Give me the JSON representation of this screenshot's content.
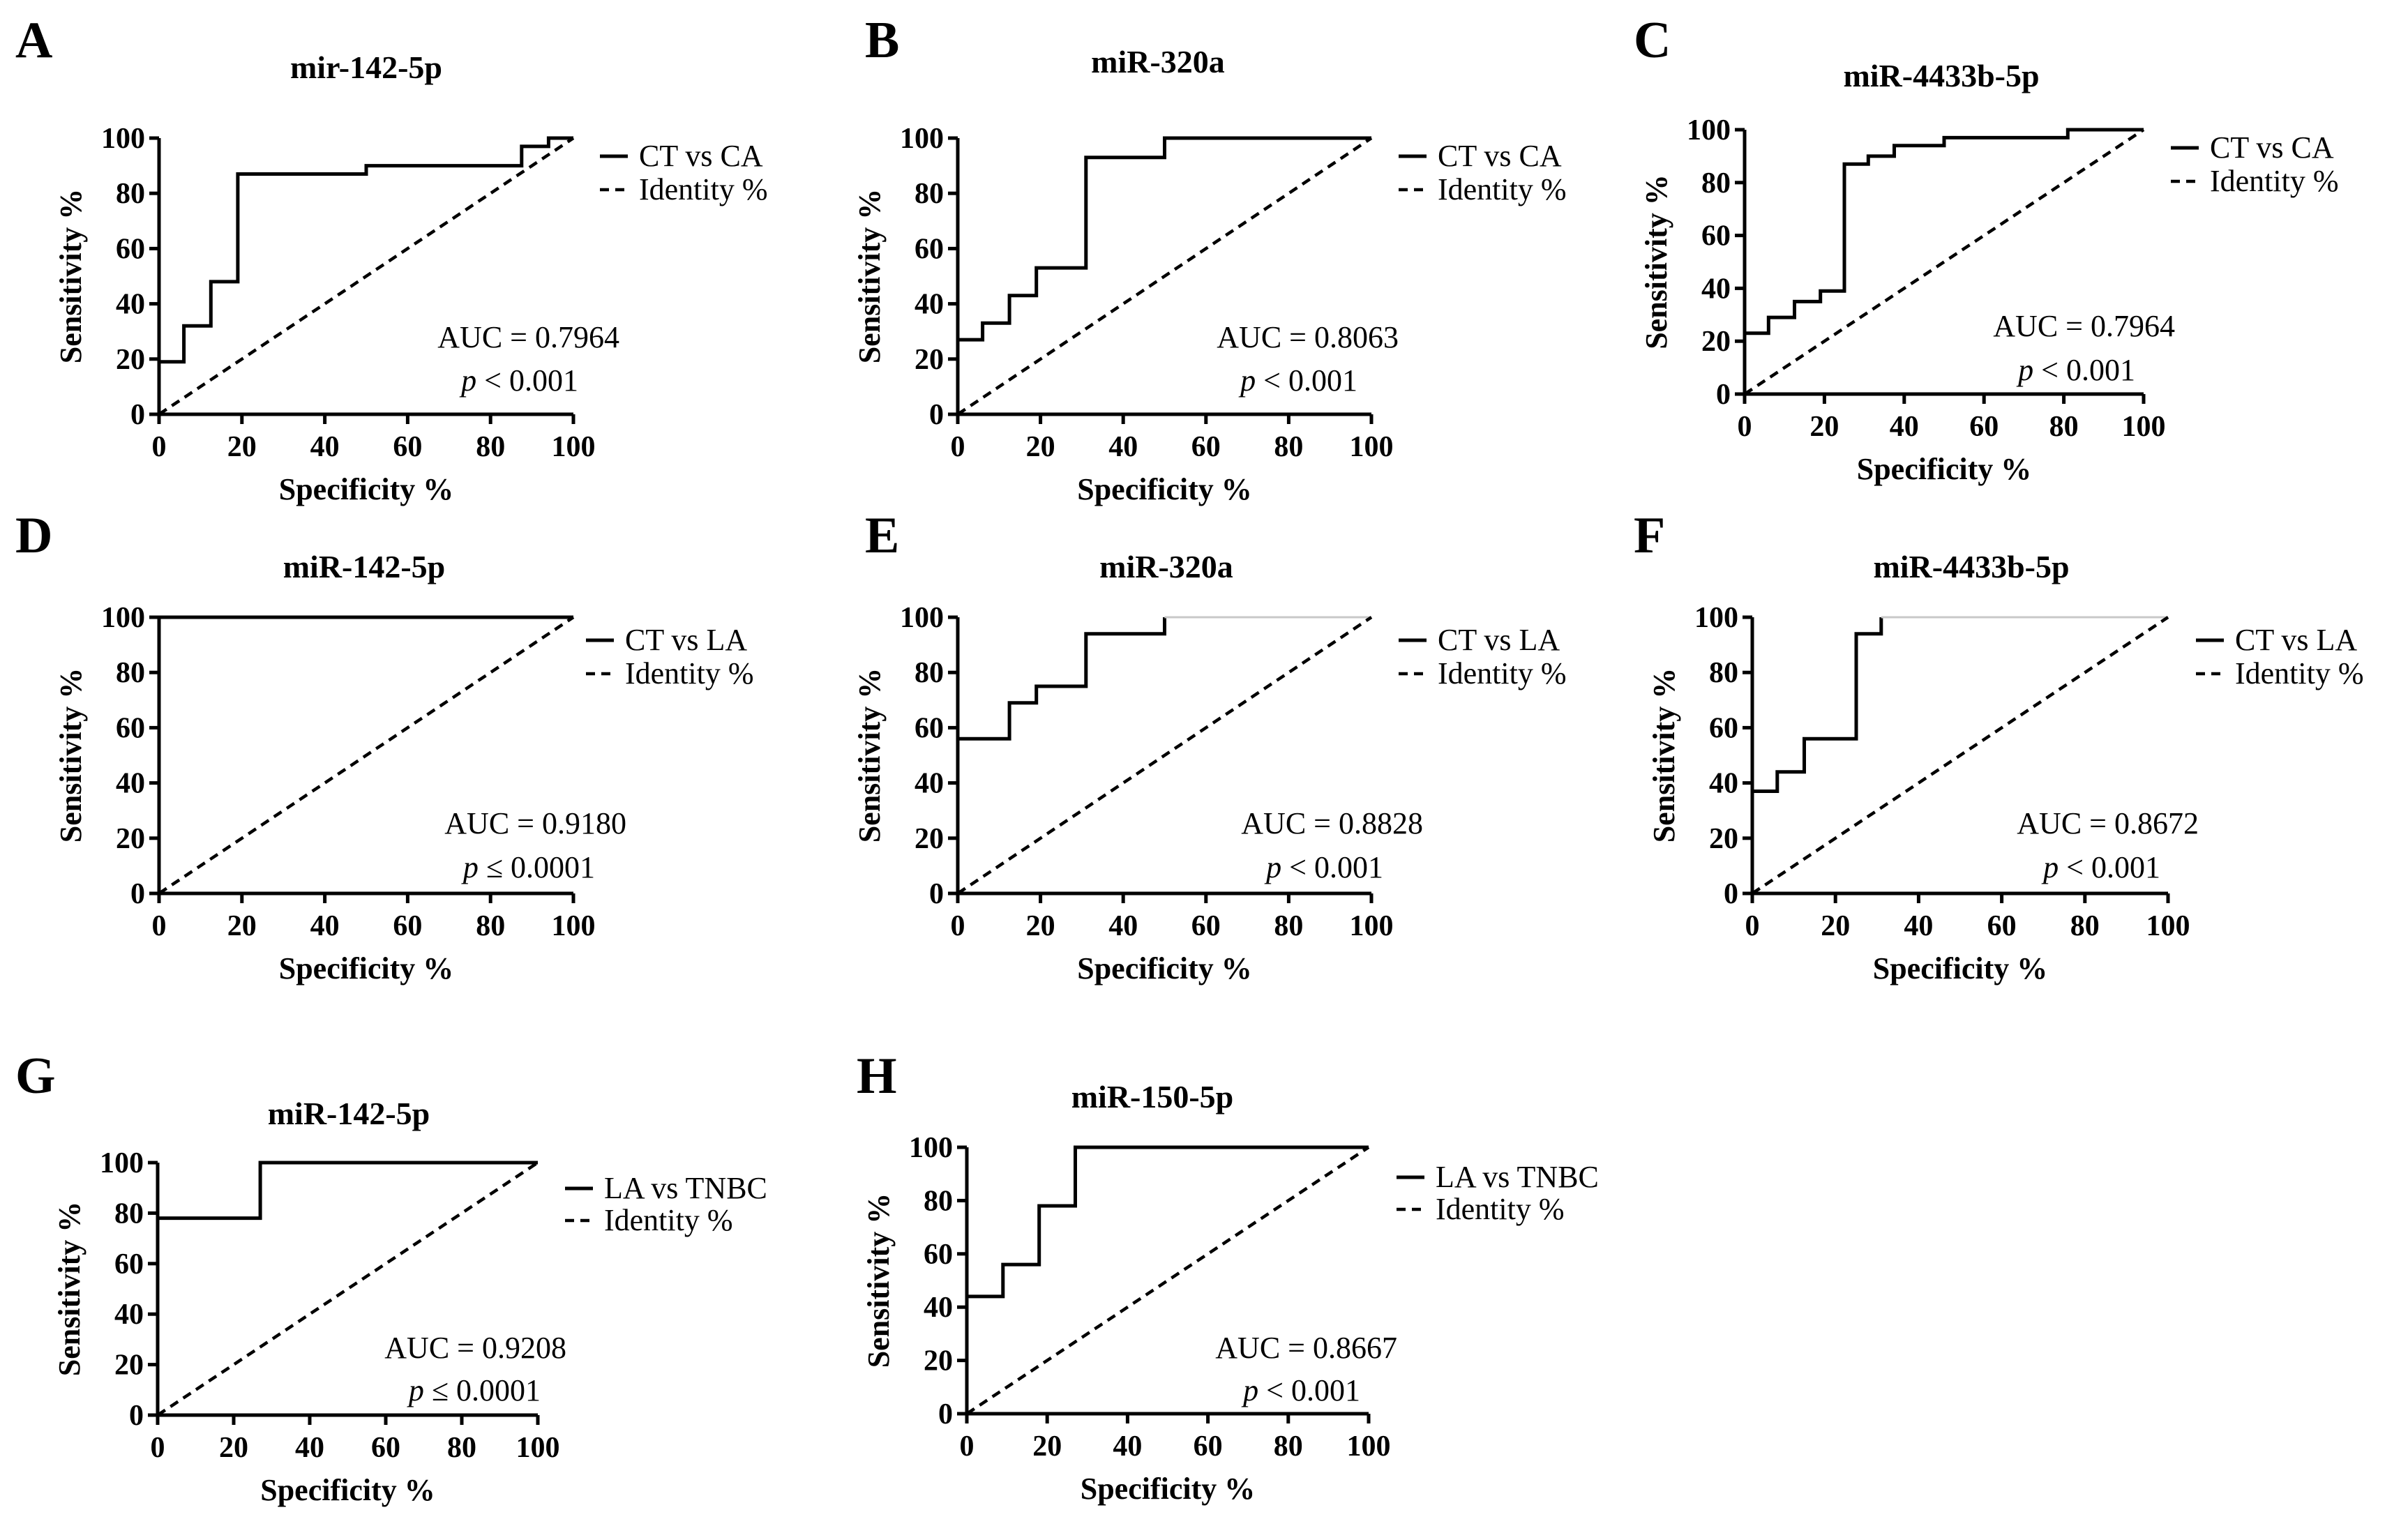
{
  "chart_data": [
    {
      "panel": "A",
      "type": "line",
      "title": "mir-142-5p",
      "xlabel": "Specificity %",
      "ylabel": "Sensitivity %",
      "xlim": [
        0,
        100
      ],
      "ylim": [
        0,
        100
      ],
      "xticks": [
        "0",
        "20",
        "40",
        "60",
        "80",
        "100"
      ],
      "yticks": [
        "0",
        "20",
        "40",
        "60",
        "80",
        "100"
      ],
      "series": [
        {
          "name": "CT vs CA",
          "style": "solid",
          "x": [
            0,
            6,
            6,
            12.5,
            12.5,
            19,
            19,
            50,
            50,
            87.5,
            87.5,
            94,
            94,
            100
          ],
          "y": [
            19,
            19,
            32,
            32,
            48,
            48,
            87,
            87,
            90,
            90,
            97,
            97,
            100,
            100
          ]
        },
        {
          "name": "Identity %",
          "style": "dashed",
          "x": [
            0,
            100
          ],
          "y": [
            0,
            100
          ]
        }
      ],
      "auc_text": "AUC = 0.7964",
      "p_symbol": "p",
      "p_text": " < 0.001"
    },
    {
      "panel": "B",
      "type": "line",
      "title": "miR-320a",
      "xlabel": "Specificity %",
      "ylabel": "Sensitivity %",
      "xlim": [
        0,
        100
      ],
      "ylim": [
        0,
        100
      ],
      "xticks": [
        "0",
        "20",
        "40",
        "60",
        "80",
        "100"
      ],
      "yticks": [
        "0",
        "20",
        "40",
        "60",
        "80",
        "100"
      ],
      "series": [
        {
          "name": "CT vs CA",
          "style": "solid",
          "x": [
            0,
            6,
            6,
            12.5,
            12.5,
            19,
            19,
            31,
            31,
            50,
            50,
            100
          ],
          "y": [
            27,
            27,
            33,
            33,
            43,
            43,
            53,
            53,
            93,
            93,
            100,
            100
          ]
        },
        {
          "name": "Identity %",
          "style": "dashed",
          "x": [
            0,
            100
          ],
          "y": [
            0,
            100
          ]
        }
      ],
      "auc_text": "AUC = 0.8063",
      "p_symbol": "p",
      "p_text": " < 0.001"
    },
    {
      "panel": "C",
      "type": "line",
      "title": "miR-4433b-5p",
      "xlabel": "Specificity %",
      "ylabel": "Sensitivity %",
      "xlim": [
        0,
        100
      ],
      "ylim": [
        0,
        100
      ],
      "xticks": [
        "0",
        "20",
        "40",
        "60",
        "80",
        "100"
      ],
      "yticks": [
        "0",
        "20",
        "40",
        "60",
        "80",
        "100"
      ],
      "series": [
        {
          "name": "CT vs CA",
          "style": "solid",
          "x": [
            0,
            6,
            6,
            12.5,
            12.5,
            19,
            19,
            25,
            25,
            31,
            31,
            37.5,
            37.5,
            50,
            50,
            81,
            81,
            100
          ],
          "y": [
            23,
            23,
            29,
            29,
            35,
            35,
            39,
            39,
            87,
            87,
            90,
            90,
            94,
            94,
            97,
            97,
            100,
            100
          ]
        },
        {
          "name": "Identity %",
          "style": "dashed",
          "x": [
            0,
            100
          ],
          "y": [
            0,
            100
          ]
        }
      ],
      "auc_text": "AUC = 0.7964",
      "p_symbol": "p",
      "p_text": " < 0.001"
    },
    {
      "panel": "D",
      "type": "line",
      "title": "miR-142-5p",
      "xlabel": "Specificity %",
      "ylabel": "Sensitivity %",
      "xlim": [
        0,
        100
      ],
      "ylim": [
        0,
        100
      ],
      "xticks": [
        "0",
        "20",
        "40",
        "60",
        "80",
        "100"
      ],
      "yticks": [
        "0",
        "20",
        "40",
        "60",
        "80",
        "100"
      ],
      "series": [
        {
          "name": "CT vs LA",
          "style": "solid",
          "x": [
            0,
            100
          ],
          "y": [
            100,
            100
          ]
        },
        {
          "name": "Identity %",
          "style": "dashed",
          "x": [
            0,
            100
          ],
          "y": [
            0,
            100
          ]
        }
      ],
      "auc_text": "AUC = 0.9180",
      "p_symbol": "p",
      "p_text": " ≤ 0.0001"
    },
    {
      "panel": "E",
      "type": "line",
      "title": "miR-320a",
      "xlabel": "Specificity %",
      "ylabel": "Sensitivity %",
      "xlim": [
        0,
        100
      ],
      "ylim": [
        0,
        100
      ],
      "xticks": [
        "0",
        "20",
        "40",
        "60",
        "80",
        "100"
      ],
      "yticks": [
        "0",
        "20",
        "40",
        "60",
        "80",
        "100"
      ],
      "series": [
        {
          "name": "CT vs LA",
          "style": "solid",
          "x": [
            0,
            12.5,
            12.5,
            19,
            19,
            31,
            31,
            50,
            50
          ],
          "y": [
            56,
            56,
            69,
            69,
            75,
            75,
            94,
            94,
            100
          ]
        },
        {
          "name": "plateau",
          "style": "faint",
          "x": [
            50,
            100
          ],
          "y": [
            100,
            100
          ]
        },
        {
          "name": "Identity %",
          "style": "dashed",
          "x": [
            0,
            100
          ],
          "y": [
            0,
            100
          ]
        }
      ],
      "auc_text": "AUC = 0.8828",
      "p_symbol": "p",
      "p_text": " < 0.001"
    },
    {
      "panel": "F",
      "type": "line",
      "title": "miR-4433b-5p",
      "xlabel": "Specificity %",
      "ylabel": "Sensitivity %",
      "xlim": [
        0,
        100
      ],
      "ylim": [
        0,
        100
      ],
      "xticks": [
        "0",
        "20",
        "40",
        "60",
        "80",
        "100"
      ],
      "yticks": [
        "0",
        "20",
        "40",
        "60",
        "80",
        "100"
      ],
      "series": [
        {
          "name": "CT vs LA",
          "style": "solid",
          "x": [
            0,
            6,
            6,
            12.5,
            12.5,
            25,
            25,
            31,
            31
          ],
          "y": [
            37,
            37,
            44,
            44,
            56,
            56,
            94,
            94,
            100
          ]
        },
        {
          "name": "plateau",
          "style": "faint",
          "x": [
            31,
            100
          ],
          "y": [
            100,
            100
          ]
        },
        {
          "name": "Identity %",
          "style": "dashed",
          "x": [
            0,
            100
          ],
          "y": [
            0,
            100
          ]
        }
      ],
      "auc_text": "AUC = 0.8672",
      "p_symbol": "p",
      "p_text": " < 0.001"
    },
    {
      "panel": "G",
      "type": "line",
      "title": "miR-142-5p",
      "xlabel": "Specificity %",
      "ylabel": "Sensitivity %",
      "xlim": [
        0,
        100
      ],
      "ylim": [
        0,
        100
      ],
      "xticks": [
        "0",
        "20",
        "40",
        "60",
        "80",
        "100"
      ],
      "yticks": [
        "0",
        "20",
        "40",
        "60",
        "80",
        "100"
      ],
      "series": [
        {
          "name": "LA vs TNBC",
          "style": "solid",
          "x": [
            0,
            27,
            27,
            100
          ],
          "y": [
            78,
            78,
            100,
            100
          ]
        },
        {
          "name": "Identity %",
          "style": "dashed",
          "x": [
            0,
            100
          ],
          "y": [
            0,
            100
          ]
        }
      ],
      "auc_text": "AUC = 0.9208",
      "p_symbol": "p",
      "p_text": " ≤ 0.0001"
    },
    {
      "panel": "H",
      "type": "line",
      "title": "miR-150-5p",
      "xlabel": "Specificity %",
      "ylabel": "Sensitivity %",
      "xlim": [
        0,
        100
      ],
      "ylim": [
        0,
        100
      ],
      "xticks": [
        "0",
        "20",
        "40",
        "60",
        "80",
        "100"
      ],
      "yticks": [
        "0",
        "20",
        "40",
        "60",
        "80",
        "100"
      ],
      "series": [
        {
          "name": "LA vs TNBC",
          "style": "solid",
          "x": [
            0,
            9,
            9,
            18,
            18,
            27,
            27,
            100
          ],
          "y": [
            44,
            44,
            56,
            56,
            78,
            78,
            100,
            100
          ]
        },
        {
          "name": "Identity %",
          "style": "dashed",
          "x": [
            0,
            100
          ],
          "y": [
            0,
            100
          ]
        }
      ],
      "auc_text": "AUC = 0.8667",
      "p_symbol": "p",
      "p_text": " < 0.001"
    }
  ]
}
